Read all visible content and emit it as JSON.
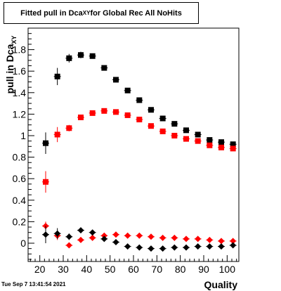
{
  "title": {
    "main": "Fitted pull in Dca",
    "sub": "XY",
    "rest": " for Global Rec All NoHits"
  },
  "timestamp": "Tue Sep  7 13:41:54 2021",
  "chart_data": {
    "type": "scatter",
    "title": "Fitted pull in Dca_XY for Global Rec All NoHits",
    "xlabel": "Quality",
    "ylabel": "pull in Dca_XY",
    "xlim": [
      15,
      105
    ],
    "ylim": [
      -0.17,
      2.0
    ],
    "xticks": [
      20,
      30,
      40,
      50,
      60,
      70,
      80,
      90,
      100
    ],
    "yticks": [
      0,
      0.2,
      0.4,
      0.6,
      0.8,
      1,
      1.2,
      1.4,
      1.6,
      1.8
    ],
    "x": [
      22.5,
      27.5,
      32.5,
      37.5,
      42.5,
      47.5,
      52.5,
      57.5,
      62.5,
      67.5,
      72.5,
      77.5,
      82.5,
      87.5,
      92.5,
      97.5,
      102.5
    ],
    "series": [
      {
        "marker": "square",
        "color": "#000000",
        "values": [
          0.93,
          1.55,
          1.72,
          1.75,
          1.74,
          1.63,
          1.52,
          1.42,
          1.33,
          1.24,
          1.16,
          1.11,
          1.05,
          1.01,
          0.96,
          0.94,
          0.92
        ],
        "errors": [
          0.1,
          0.08,
          0.04,
          0.03,
          0.02,
          0.02,
          0.02,
          0.02,
          0.02,
          0.02,
          0.02,
          0.02,
          0.02,
          0.02,
          0.02,
          0.02,
          0.02
        ]
      },
      {
        "marker": "square",
        "color": "#ff0000",
        "values": [
          0.57,
          1.01,
          1.07,
          1.17,
          1.21,
          1.23,
          1.22,
          1.19,
          1.15,
          1.09,
          1.04,
          1.0,
          0.97,
          0.95,
          0.91,
          0.89,
          0.88
        ],
        "errors": [
          0.1,
          0.07,
          0.03,
          0.02,
          0.02,
          0.02,
          0.02,
          0.02,
          0.02,
          0.02,
          0.02,
          0.02,
          0.02,
          0.02,
          0.02,
          0.02,
          0.02
        ]
      },
      {
        "marker": "diamond",
        "color": "#ff0000",
        "values": [
          0.16,
          0.07,
          -0.02,
          0.03,
          0.05,
          0.07,
          0.08,
          0.07,
          0.07,
          0.06,
          0.05,
          0.05,
          0.04,
          0.04,
          0.03,
          0.02,
          0.02
        ],
        "errors": [
          0.04,
          0.04,
          0.02,
          0.01,
          0.01,
          0.01,
          0.01,
          0.01,
          0.01,
          0.01,
          0.01,
          0.01,
          0.01,
          0.01,
          0.01,
          0.01,
          0.01
        ]
      },
      {
        "marker": "diamond",
        "color": "#000000",
        "values": [
          0.08,
          0.09,
          0.06,
          0.12,
          0.1,
          0.04,
          0.01,
          -0.03,
          -0.04,
          -0.05,
          -0.05,
          -0.04,
          -0.04,
          -0.03,
          -0.03,
          -0.03,
          -0.02
        ],
        "errors": [
          0.08,
          0.05,
          0.03,
          0.02,
          0.02,
          0.02,
          0.01,
          0.01,
          0.01,
          0.01,
          0.01,
          0.01,
          0.01,
          0.01,
          0.01,
          0.01,
          0.01
        ]
      }
    ]
  }
}
